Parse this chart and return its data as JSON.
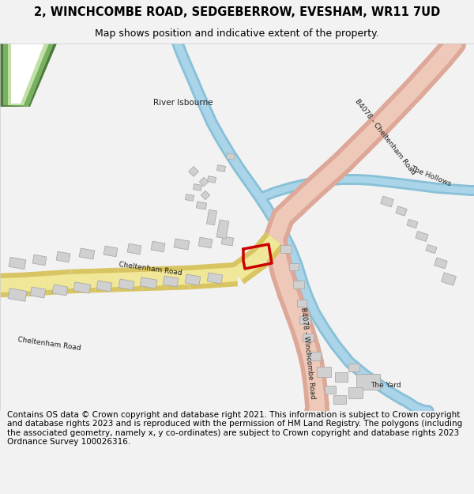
{
  "title": "2, WINCHCOMBE ROAD, SEDGEBERROW, EVESHAM, WR11 7UD",
  "subtitle": "Map shows position and indicative extent of the property.",
  "footer": "Contains OS data © Crown copyright and database right 2021. This information is subject to Crown copyright and database rights 2023 and is reproduced with the permission of HM Land Registry. The polygons (including the associated geometry, namely x, y co-ordinates) are subject to Crown copyright and database rights 2023 Ordnance Survey 100026316.",
  "bg_color": "#f2f2f2",
  "map_bg": "#ffffff",
  "a46_dark": "#4a7a3a",
  "a46_mid": "#78b060",
  "a46_light": "#c0e0a8",
  "road_b_outer": "#dda898",
  "road_b_inner": "#eec8b8",
  "road_h_outer": "#d8c460",
  "road_h_inner": "#f0e898",
  "river_color": "#88c0d8",
  "river_light": "#aad4e8",
  "building_face": "#d0d0d0",
  "building_edge": "#aaaaaa",
  "property_color": "#cc0000",
  "label_color": "#202020"
}
